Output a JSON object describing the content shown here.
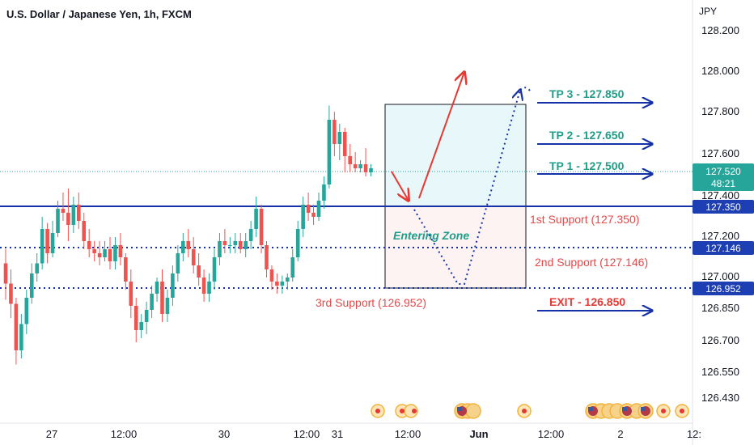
{
  "header": {
    "title": "U.S. Dollar / Japanese Yen, 1h, FXCM"
  },
  "axis": {
    "currency": "JPY",
    "y_ticks": [
      "128.200",
      "128.000",
      "127.800",
      "127.600",
      "127.400",
      "127.200",
      "127.000",
      "126.850",
      "126.700",
      "126.550",
      "126.430"
    ],
    "x_ticks": [
      "27",
      "12:00",
      "30",
      "12:00",
      "31",
      "12:00",
      "Jun",
      "12:00",
      "2",
      "12:"
    ]
  },
  "price_tags": {
    "last_price": "127.520",
    "countdown": "48:21",
    "level_1": "127.350",
    "level_2": "127.146",
    "level_3": "126.952"
  },
  "annotations": {
    "tp3": "TP 3 - 127.850",
    "tp2": "TP 2 - 127.650",
    "tp1": "TP 1 - 127.500",
    "exit": "EXIT - 126.850",
    "support1": "1st Support (127.350)",
    "support2": "2nd Support (127.146)",
    "support3": "3rd Support (126.952)",
    "zone": "Entering Zone"
  },
  "colors": {
    "up": "#26a69a",
    "down": "#ef5350",
    "line": "#1531a8",
    "tp": "#1f9e8a",
    "exit": "#e53935",
    "support_text": "#e04a4a",
    "tag_bg": "#1e3fb4",
    "last_tag_bg": "#26a69a"
  },
  "chart_data": {
    "type": "candlestick",
    "symbol": "USDJPY",
    "timeframe": "1h",
    "ylim": [
      126.43,
      128.2
    ],
    "last_price": 127.52,
    "horizontal_levels": [
      127.35,
      127.146,
      126.952
    ],
    "take_profit": [
      127.5,
      127.65,
      127.85
    ],
    "exit": 126.85,
    "candles": [
      [
        127.05,
        127.12,
        126.87,
        126.95
      ],
      [
        126.95,
        127.02,
        126.78,
        126.85
      ],
      [
        126.85,
        126.88,
        126.55,
        126.62
      ],
      [
        126.62,
        126.8,
        126.58,
        126.75
      ],
      [
        126.75,
        126.92,
        126.7,
        126.88
      ],
      [
        126.88,
        127.05,
        126.85,
        127.0
      ],
      [
        127.0,
        127.1,
        126.96,
        127.05
      ],
      [
        127.05,
        127.28,
        127.02,
        127.22
      ],
      [
        127.22,
        127.25,
        127.05,
        127.1
      ],
      [
        127.1,
        127.26,
        127.08,
        127.2
      ],
      [
        127.2,
        127.36,
        127.18,
        127.32
      ],
      [
        127.32,
        127.4,
        127.26,
        127.3
      ],
      [
        127.3,
        127.42,
        127.16,
        127.24
      ],
      [
        127.24,
        127.38,
        127.2,
        127.34
      ],
      [
        127.34,
        127.4,
        127.22,
        127.26
      ],
      [
        127.26,
        127.3,
        127.12,
        127.16
      ],
      [
        127.16,
        127.22,
        127.08,
        127.12
      ],
      [
        127.12,
        127.16,
        127.06,
        127.1
      ],
      [
        127.1,
        127.16,
        127.04,
        127.08
      ],
      [
        127.08,
        127.16,
        127.06,
        127.12
      ],
      [
        127.12,
        127.18,
        127.02,
        127.06
      ],
      [
        127.06,
        127.18,
        127.02,
        127.14
      ],
      [
        127.14,
        127.2,
        127.04,
        127.08
      ],
      [
        127.08,
        127.1,
        126.92,
        126.96
      ],
      [
        126.96,
        127.02,
        126.78,
        126.84
      ],
      [
        126.84,
        126.88,
        126.66,
        126.72
      ],
      [
        126.72,
        126.8,
        126.68,
        126.76
      ],
      [
        126.76,
        126.86,
        126.7,
        126.82
      ],
      [
        126.82,
        126.94,
        126.78,
        126.9
      ],
      [
        126.9,
        126.98,
        126.86,
        126.96
      ],
      [
        126.96,
        127.02,
        126.76,
        126.8
      ],
      [
        126.8,
        126.92,
        126.76,
        126.88
      ],
      [
        126.88,
        127.04,
        126.84,
        127.0
      ],
      [
        127.0,
        127.14,
        126.96,
        127.1
      ],
      [
        127.1,
        127.2,
        127.06,
        127.16
      ],
      [
        127.16,
        127.22,
        127.08,
        127.12
      ],
      [
        127.12,
        127.18,
        127.0,
        127.04
      ],
      [
        127.04,
        127.1,
        126.94,
        126.98
      ],
      [
        126.98,
        127.02,
        126.86,
        126.9
      ],
      [
        126.9,
        127.0,
        126.86,
        126.96
      ],
      [
        126.96,
        127.12,
        126.92,
        127.08
      ],
      [
        127.08,
        127.2,
        127.04,
        127.16
      ],
      [
        127.16,
        127.22,
        127.1,
        127.14
      ],
      [
        127.14,
        127.18,
        127.1,
        127.14
      ],
      [
        127.14,
        127.2,
        127.1,
        127.16
      ],
      [
        127.16,
        127.2,
        127.1,
        127.12
      ],
      [
        127.12,
        127.2,
        127.08,
        127.16
      ],
      [
        127.16,
        127.26,
        127.12,
        127.22
      ],
      [
        127.22,
        127.38,
        127.18,
        127.32
      ],
      [
        127.32,
        127.34,
        127.1,
        127.14
      ],
      [
        127.14,
        127.16,
        126.98,
        127.02
      ],
      [
        127.02,
        127.04,
        126.92,
        126.96
      ],
      [
        126.96,
        127.0,
        126.9,
        126.94
      ],
      [
        126.94,
        126.99,
        126.9,
        126.96
      ],
      [
        126.96,
        127.0,
        126.92,
        126.98
      ],
      [
        126.98,
        127.12,
        126.96,
        127.08
      ],
      [
        127.08,
        127.26,
        127.06,
        127.22
      ],
      [
        127.22,
        127.38,
        127.18,
        127.34
      ],
      [
        127.34,
        127.4,
        127.26,
        127.3
      ],
      [
        127.3,
        127.34,
        127.24,
        127.28
      ],
      [
        127.28,
        127.4,
        127.26,
        127.36
      ],
      [
        127.36,
        127.48,
        127.32,
        127.44
      ],
      [
        127.44,
        127.83,
        127.42,
        127.76
      ],
      [
        127.76,
        127.8,
        127.58,
        127.64
      ],
      [
        127.64,
        127.74,
        127.56,
        127.7
      ],
      [
        127.7,
        127.72,
        127.5,
        127.58
      ],
      [
        127.58,
        127.64,
        127.5,
        127.54
      ],
      [
        127.54,
        127.6,
        127.5,
        127.52
      ],
      [
        127.52,
        127.56,
        127.5,
        127.54
      ],
      [
        127.54,
        127.62,
        127.48,
        127.5
      ],
      [
        127.5,
        127.54,
        127.48,
        127.52
      ]
    ]
  }
}
